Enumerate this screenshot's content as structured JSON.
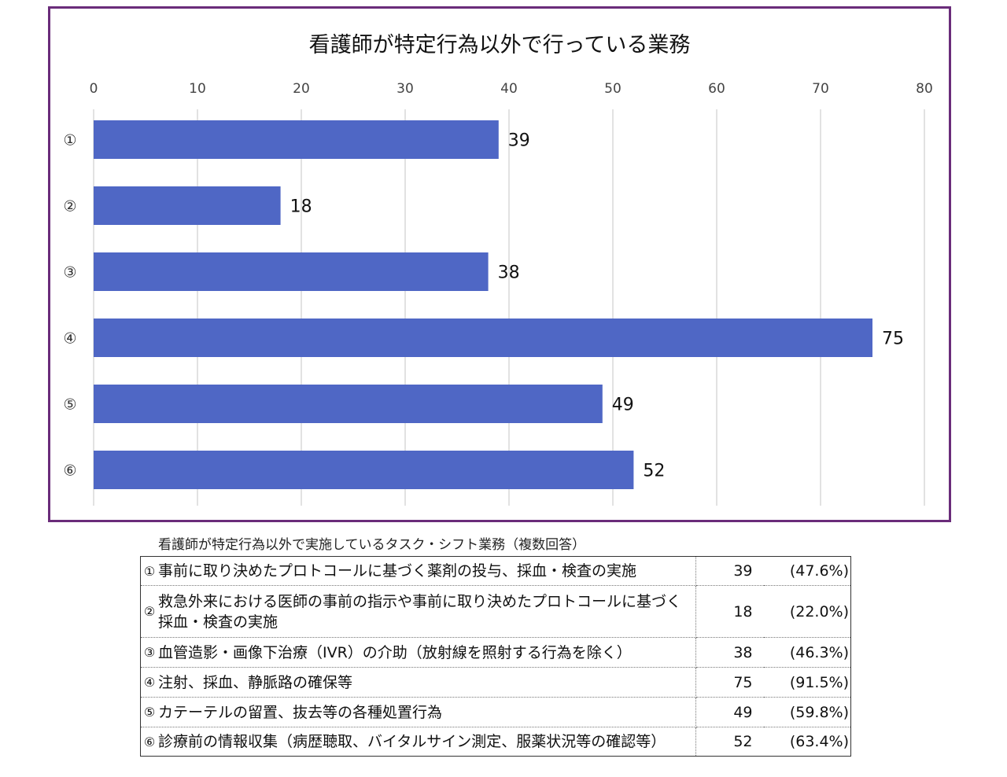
{
  "chart_data": {
    "type": "bar",
    "orientation": "horizontal",
    "title": "看護師が特定行為以外で行っている業務",
    "categories": [
      "①",
      "②",
      "③",
      "④",
      "⑤",
      "⑥"
    ],
    "values": [
      39,
      18,
      38,
      75,
      49,
      52
    ],
    "xlim": [
      0,
      80
    ],
    "ticks": [
      0,
      10,
      20,
      30,
      40,
      50,
      60,
      70,
      80
    ],
    "axis_position": "top",
    "grid": true,
    "data_labels": true,
    "bar_color": "#4f67c5",
    "frame_color": "#6a2c7a"
  },
  "table": {
    "caption": "看護師が特定行為以外で実施しているタスク・シフト業務（複数回答）",
    "rows": [
      {
        "num": "①",
        "text": "事前に取り決めたプロトコールに基づく薬剤の投与、採血・検査の実施",
        "count": "39",
        "pct": "(47.6%)"
      },
      {
        "num": "②",
        "text": "救急外来における医師の事前の指示や事前に取り決めたプロトコールに基づく採血・検査の実施",
        "count": "18",
        "pct": "(22.0%)"
      },
      {
        "num": "③",
        "text": "血管造影・画像下治療（IVR）の介助（放射線を照射する行為を除く）",
        "count": "38",
        "pct": "(46.3%)"
      },
      {
        "num": "④",
        "text": "注射、採血、静脈路の確保等",
        "count": "75",
        "pct": "(91.5%)"
      },
      {
        "num": "⑤",
        "text": "カテーテルの留置、抜去等の各種処置行為",
        "count": "49",
        "pct": "(59.8%)"
      },
      {
        "num": "⑥",
        "text": "診療前の情報収集（病歴聴取、バイタルサイン測定、服薬状況等の確認等）",
        "count": "52",
        "pct": "(63.4%)"
      }
    ]
  }
}
